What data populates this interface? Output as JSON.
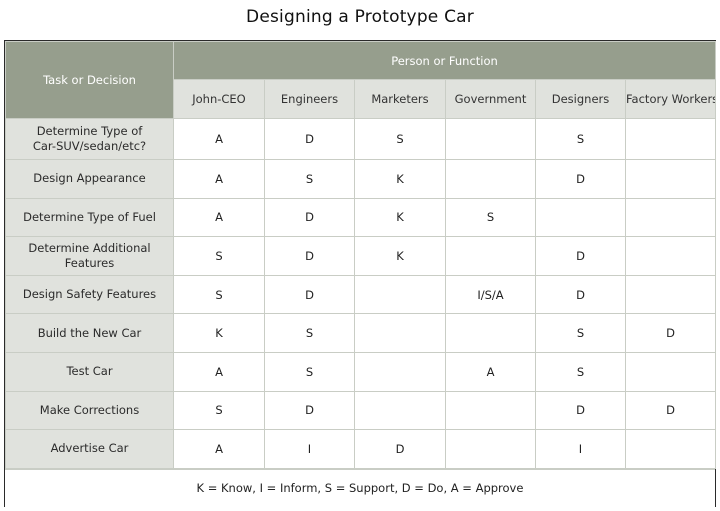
{
  "title": "Designing a Prototype Car",
  "corner_label": "Task or Decision",
  "group_label": "Person or Function",
  "columns": [
    "John-CEO",
    "Engineers",
    "Marketers",
    "Government",
    "Designers",
    "Factory Workers"
  ],
  "rows": [
    {
      "task": "Determine Type of Car-SUV/sedan/etc?",
      "cells": [
        "A",
        "D",
        "S",
        "",
        "S",
        ""
      ]
    },
    {
      "task": "Design Appearance",
      "cells": [
        "A",
        "S",
        "K",
        "",
        "D",
        ""
      ]
    },
    {
      "task": "Determine Type of Fuel",
      "cells": [
        "A",
        "D",
        "K",
        "S",
        "",
        ""
      ]
    },
    {
      "task": "Determine Additional Features",
      "cells": [
        "S",
        "D",
        "K",
        "",
        "D",
        ""
      ]
    },
    {
      "task": "Design Safety Features",
      "cells": [
        "S",
        "D",
        "",
        "I/S/A",
        "D",
        ""
      ]
    },
    {
      "task": "Build the New Car",
      "cells": [
        "K",
        "S",
        "",
        "",
        "S",
        "D"
      ]
    },
    {
      "task": "Test Car",
      "cells": [
        "A",
        "S",
        "",
        "A",
        "S",
        ""
      ]
    },
    {
      "task": "Make Corrections",
      "cells": [
        "S",
        "D",
        "",
        "",
        "D",
        "D"
      ]
    },
    {
      "task": "Advertise Car",
      "cells": [
        "A",
        "I",
        "D",
        "",
        "I",
        ""
      ]
    }
  ],
  "legend": "K = Know, I = Inform, S = Support, D = Do, A = Approve",
  "colors": {
    "header_bg": "#969e8d",
    "subheader_bg": "#e0e2dd",
    "grid_line": "#c9cdc5"
  }
}
